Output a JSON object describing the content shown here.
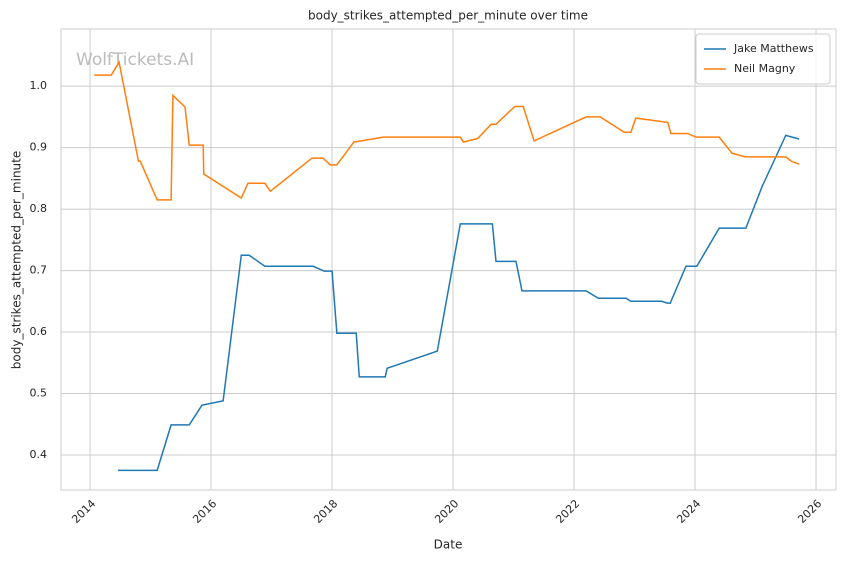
{
  "chart_data": {
    "type": "line",
    "title": "body_strikes_attempted_per_minute over time",
    "xlabel": "Date",
    "ylabel": "body_strikes_attempted_per_minute",
    "watermark": "WolfTickets.AI",
    "xlim": [
      2013.52,
      2026.33
    ],
    "ylim": [
      0.343,
      1.093
    ],
    "xticks": [
      2014,
      2016,
      2018,
      2020,
      2022,
      2024,
      2026
    ],
    "yticks": [
      0.4,
      0.5,
      0.6,
      0.7,
      0.8,
      0.9,
      {
        "value": 1,
        "label": "1.0"
      }
    ],
    "grid": true,
    "legend": "upper right",
    "series": [
      {
        "name": "Jake Matthews",
        "color": "#1f77b4",
        "x": [
          2014.46,
          2015.11,
          2015.34,
          2015.64,
          2015.85,
          2016.2,
          2016.5,
          2016.63,
          2016.89,
          2017.69,
          2017.87,
          2018.0,
          2018.08,
          2018.4,
          2018.45,
          2018.88,
          2018.91,
          2019.74,
          2020.12,
          2020.65,
          2020.71,
          2021.04,
          2021.14,
          2022.2,
          2022.4,
          2022.86,
          2022.94,
          2023.45,
          2023.54,
          2023.59,
          2023.85,
          2024.03,
          2024.4,
          2024.84,
          2025.11,
          2025.5,
          2025.72
        ],
        "values": [
          0.375,
          0.375,
          0.449,
          0.449,
          0.481,
          0.488,
          0.725,
          0.725,
          0.707,
          0.707,
          0.699,
          0.699,
          0.598,
          0.598,
          0.527,
          0.527,
          0.541,
          0.569,
          0.776,
          0.776,
          0.715,
          0.715,
          0.667,
          0.667,
          0.655,
          0.655,
          0.65,
          0.65,
          0.647,
          0.647,
          0.707,
          0.707,
          0.769,
          0.769,
          0.837,
          0.92,
          0.914
        ]
      },
      {
        "name": "Neil Magny",
        "color": "#ff7f0e",
        "x": [
          2014.07,
          2014.35,
          2014.48,
          2014.8,
          2014.83,
          2015.11,
          2015.34,
          2015.37,
          2015.57,
          2015.64,
          2015.87,
          2015.88,
          2016.5,
          2016.61,
          2016.89,
          2016.98,
          2017.67,
          2017.85,
          2017.97,
          2018.08,
          2018.36,
          2018.84,
          2020.12,
          2020.17,
          2020.41,
          2020.63,
          2020.71,
          2021.02,
          2021.16,
          2021.34,
          2022.2,
          2022.43,
          2022.83,
          2022.94,
          2023.02,
          2023.55,
          2023.6,
          2023.87,
          2024.02,
          2024.4,
          2024.61,
          2024.83,
          2025.5,
          2025.59,
          2025.72
        ],
        "values": [
          1.018,
          1.018,
          1.039,
          0.878,
          0.878,
          0.815,
          0.815,
          0.985,
          0.966,
          0.904,
          0.904,
          0.857,
          0.818,
          0.842,
          0.842,
          0.829,
          0.883,
          0.883,
          0.872,
          0.872,
          0.909,
          0.917,
          0.917,
          0.909,
          0.915,
          0.938,
          0.938,
          0.967,
          0.967,
          0.911,
          0.95,
          0.95,
          0.925,
          0.925,
          0.948,
          0.941,
          0.923,
          0.923,
          0.917,
          0.917,
          0.891,
          0.885,
          0.885,
          0.878,
          0.873
        ]
      }
    ]
  }
}
